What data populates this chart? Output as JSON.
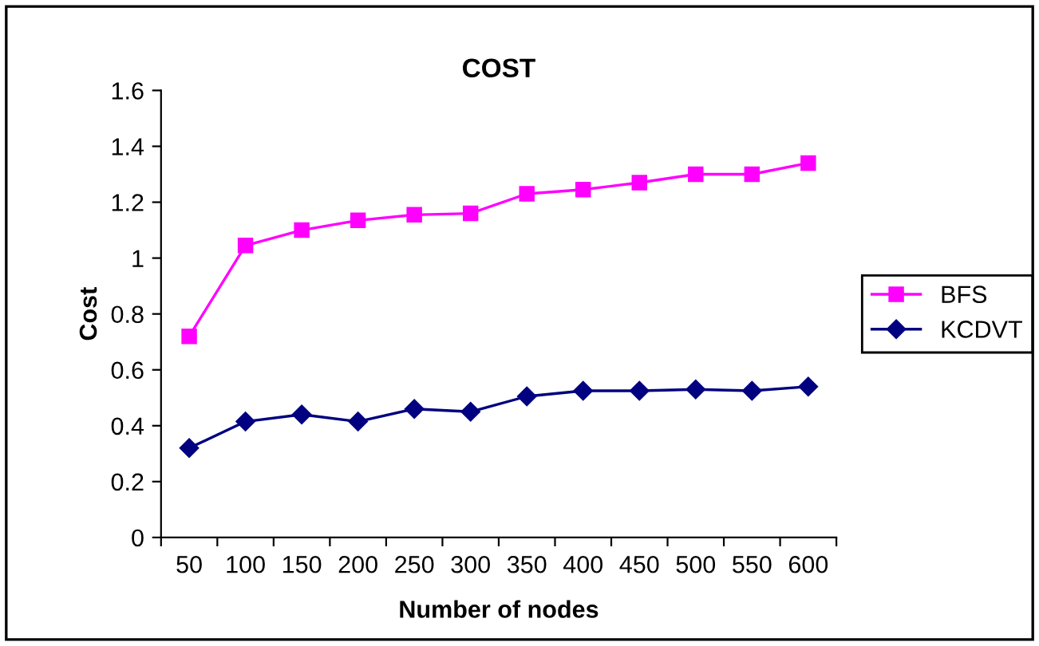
{
  "chart_data": {
    "type": "line",
    "title": "COST",
    "xlabel": "Number of nodes",
    "ylabel": "Cost",
    "categories": [
      "50",
      "100",
      "150",
      "200",
      "250",
      "300",
      "350",
      "400",
      "450",
      "500",
      "550",
      "600"
    ],
    "series": [
      {
        "name": "BFS",
        "color": "#ff00ff",
        "marker": "square",
        "values": [
          0.72,
          1.045,
          1.1,
          1.135,
          1.155,
          1.16,
          1.23,
          1.245,
          1.27,
          1.3,
          1.3,
          1.34
        ]
      },
      {
        "name": "KCDVT",
        "color": "#000080",
        "marker": "diamond",
        "values": [
          0.32,
          0.415,
          0.44,
          0.415,
          0.46,
          0.45,
          0.505,
          0.525,
          0.525,
          0.53,
          0.525,
          0.54
        ]
      }
    ],
    "ylim": [
      0,
      1.6
    ],
    "yticks": [
      0,
      0.2,
      0.4,
      0.6,
      0.8,
      1,
      1.2,
      1.4,
      1.6
    ],
    "grid": false,
    "legend": "right",
    "line_style": "solid"
  }
}
